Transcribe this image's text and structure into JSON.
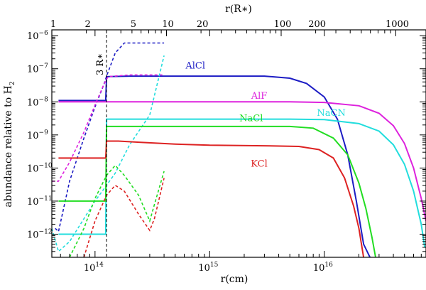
{
  "chart_data": {
    "type": "line",
    "xlabel": "r(cm)",
    "x2label": "r(R∗)",
    "ylabel_main": "abundance relative to H",
    "ylabel_sub": "2",
    "x_scale": "log",
    "y_scale": "log",
    "xlim": [
      42000000000000,
      77000000000000000
    ],
    "ylim": [
      2e-13,
      1.5e-06
    ],
    "x_ticks": [
      {
        "value": 100000000000000,
        "base": "10",
        "exp": "14"
      },
      {
        "value": 1000000000000000,
        "base": "10",
        "exp": "15"
      },
      {
        "value": 10000000000000000,
        "base": "10",
        "exp": "16"
      }
    ],
    "y_ticks": [
      {
        "value": 1e-06,
        "base": "10",
        "exp": "−6"
      },
      {
        "value": 1e-07,
        "base": "10",
        "exp": "−7"
      },
      {
        "value": 1e-08,
        "base": "10",
        "exp": "−8"
      },
      {
        "value": 1e-09,
        "base": "10",
        "exp": "−9"
      },
      {
        "value": 1e-10,
        "base": "10",
        "exp": "−10"
      },
      {
        "value": 1e-11,
        "base": "10",
        "exp": "−11"
      },
      {
        "value": 1e-12,
        "base": "10",
        "exp": "−12"
      }
    ],
    "rstar_cm": 42000000000000,
    "top_ticks": [
      {
        "value": 1,
        "label": "1"
      },
      {
        "value": 2,
        "label": "2"
      },
      {
        "value": 5,
        "label": "5"
      },
      {
        "value": 10,
        "label": "10"
      },
      {
        "value": 20,
        "label": "20"
      },
      {
        "value": 100,
        "label": "100"
      },
      {
        "value": 200,
        "label": "200"
      },
      {
        "value": 1000,
        "label": "1000"
      }
    ],
    "vline": {
      "x": 126000000000000,
      "label": "3 R∗"
    },
    "series": [
      {
        "name": "AlCl",
        "color": "#1c1cc4",
        "dash": false,
        "label_at": [
          750000000000000,
          1.02e-07
        ],
        "points": [
          [
            48000000000000,
            1.1e-08
          ],
          [
            124000000000000,
            1.1e-08
          ],
          [
            126000000000000,
            5.8e-08
          ],
          [
            200000000000000,
            6e-08
          ],
          [
            500000000000000,
            6e-08
          ],
          [
            1000000000000000,
            6e-08
          ],
          [
            3000000000000000,
            6e-08
          ],
          [
            5000000000000000,
            5.2e-08
          ],
          [
            7000000000000000,
            3.6e-08
          ],
          [
            10000000000000000,
            1.4e-08
          ],
          [
            13000000000000000,
            3e-09
          ],
          [
            16000000000000000,
            2.5e-10
          ],
          [
            19000000000000000,
            1e-11
          ],
          [
            22000000000000000,
            5e-13
          ],
          [
            25000000000000000,
            2e-13
          ]
        ]
      },
      {
        "name": "AlCl",
        "color": "#1c1cc4",
        "dash": true,
        "label_at": null,
        "points": [
          [
            45000000000000,
            1.5e-12
          ],
          [
            48000000000000,
            1.2e-12
          ],
          [
            60000000000000,
            4e-11
          ],
          [
            80000000000000,
            8e-10
          ],
          [
            100000000000000,
            7e-09
          ],
          [
            120000000000000,
            3.5e-08
          ],
          [
            126000000000000,
            6e-08
          ],
          [
            150000000000000,
            3e-07
          ],
          [
            180000000000000,
            6e-07
          ],
          [
            220000000000000,
            6e-07
          ],
          [
            400000000000000,
            6e-07
          ]
        ]
      },
      {
        "name": "AlF",
        "color": "#dd22dd",
        "dash": false,
        "label_at": [
          2700000000000000,
          1.23e-08
        ],
        "points": [
          [
            48000000000000,
            1e-08
          ],
          [
            124000000000000,
            1e-08
          ],
          [
            130000000000000,
            1e-08
          ],
          [
            1000000000000000,
            1e-08
          ],
          [
            5000000000000000,
            1e-08
          ],
          [
            10000000000000000,
            9.6e-09
          ],
          [
            20000000000000000,
            7.6e-09
          ],
          [
            30000000000000000,
            4.5e-09
          ],
          [
            40000000000000000,
            1.9e-09
          ],
          [
            50000000000000000,
            5.5e-10
          ],
          [
            60000000000000000,
            1e-10
          ],
          [
            70000000000000000,
            1.2e-11
          ],
          [
            77000000000000000,
            2.5e-12
          ]
        ]
      },
      {
        "name": "AlF",
        "color": "#dd22dd",
        "dash": true,
        "label_at": null,
        "points": [
          [
            42000000000000,
            4e-11
          ],
          [
            48000000000000,
            4e-11
          ],
          [
            60000000000000,
            1.5e-10
          ],
          [
            80000000000000,
            1.2e-09
          ],
          [
            100000000000000,
            8e-09
          ],
          [
            120000000000000,
            3.5e-08
          ],
          [
            130000000000000,
            5.8e-08
          ],
          [
            200000000000000,
            6.5e-08
          ],
          [
            300000000000000,
            6.5e-08
          ],
          [
            400000000000000,
            6.5e-08
          ]
        ]
      },
      {
        "name": "NaCN",
        "color": "#22dddd",
        "dash": false,
        "label_at": [
          11500000000000000,
          3.8e-09
        ],
        "points": [
          [
            48000000000000,
            1e-12
          ],
          [
            124000000000000,
            1e-12
          ],
          [
            126000000000000,
            3e-09
          ],
          [
            500000000000000,
            3e-09
          ],
          [
            5000000000000000,
            3e-09
          ],
          [
            10000000000000000,
            2.9e-09
          ],
          [
            20000000000000000,
            2.2e-09
          ],
          [
            30000000000000000,
            1.3e-09
          ],
          [
            40000000000000000,
            5e-10
          ],
          [
            50000000000000000,
            1.3e-10
          ],
          [
            60000000000000000,
            2e-11
          ],
          [
            70000000000000000,
            2e-12
          ],
          [
            75000000000000000,
            4e-13
          ]
        ]
      },
      {
        "name": "NaCN",
        "color": "#22dddd",
        "dash": true,
        "label_at": null,
        "points": [
          [
            42000000000000,
            1.5e-12
          ],
          [
            48000000000000,
            3e-13
          ],
          [
            60000000000000,
            6e-13
          ],
          [
            100000000000000,
            1e-11
          ],
          [
            126000000000000,
            3e-11
          ],
          [
            150000000000000,
            7e-11
          ],
          [
            200000000000000,
            5e-10
          ],
          [
            300000000000000,
            4e-09
          ],
          [
            400000000000000,
            2.5e-07
          ]
        ]
      },
      {
        "name": "NaCl",
        "color": "#22dd22",
        "dash": false,
        "label_at": [
          2300000000000000,
          2.6e-09
        ],
        "points": [
          [
            48000000000000,
            1e-11
          ],
          [
            124000000000000,
            1e-11
          ],
          [
            126000000000000,
            1.8e-09
          ],
          [
            500000000000000,
            1.8e-09
          ],
          [
            5000000000000000,
            1.8e-09
          ],
          [
            8000000000000000,
            1.6e-09
          ],
          [
            12000000000000000,
            8e-10
          ],
          [
            16000000000000000,
            2.5e-10
          ],
          [
            20000000000000000,
            3.5e-11
          ],
          [
            23000000000000000,
            6e-12
          ],
          [
            26000000000000000,
            8e-13
          ],
          [
            28000000000000000,
            2e-13
          ]
        ]
      },
      {
        "name": "NaCl",
        "color": "#22dd22",
        "dash": true,
        "label_at": null,
        "points": [
          [
            60000000000000,
            2e-13
          ],
          [
            80000000000000,
            1.5e-12
          ],
          [
            100000000000000,
            1.2e-11
          ],
          [
            126000000000000,
            6e-11
          ],
          [
            150000000000000,
            1.2e-10
          ],
          [
            180000000000000,
            6e-11
          ],
          [
            240000000000000,
            1.5e-11
          ],
          [
            300000000000000,
            2.5e-12
          ],
          [
            330000000000000,
            8e-12
          ],
          [
            400000000000000,
            8e-11
          ]
        ]
      },
      {
        "name": "KCl",
        "color": "#dd2222",
        "dash": false,
        "label_at": [
          2700000000000000,
          1.11e-10
        ],
        "points": [
          [
            48000000000000,
            2e-10
          ],
          [
            124000000000000,
            2e-10
          ],
          [
            126000000000000,
            6.5e-10
          ],
          [
            160000000000000,
            6.5e-10
          ],
          [
            250000000000000,
            6e-10
          ],
          [
            500000000000000,
            5.3e-10
          ],
          [
            1000000000000000,
            4.9e-10
          ],
          [
            3000000000000000,
            4.7e-10
          ],
          [
            6000000000000000,
            4.5e-10
          ],
          [
            9000000000000000,
            3.6e-10
          ],
          [
            12000000000000000,
            2e-10
          ],
          [
            15000000000000000,
            5e-11
          ],
          [
            18000000000000000,
            7e-12
          ],
          [
            20000000000000000,
            1.5e-12
          ],
          [
            22000000000000000,
            2e-13
          ]
        ]
      },
      {
        "name": "KCl",
        "color": "#dd2222",
        "dash": true,
        "label_at": null,
        "points": [
          [
            80000000000000,
            2e-13
          ],
          [
            100000000000000,
            2.5e-12
          ],
          [
            126000000000000,
            1.5e-11
          ],
          [
            150000000000000,
            3e-11
          ],
          [
            180000000000000,
            2e-11
          ],
          [
            240000000000000,
            4e-12
          ],
          [
            300000000000000,
            1.3e-12
          ],
          [
            330000000000000,
            3e-12
          ],
          [
            400000000000000,
            5e-11
          ]
        ]
      }
    ]
  }
}
